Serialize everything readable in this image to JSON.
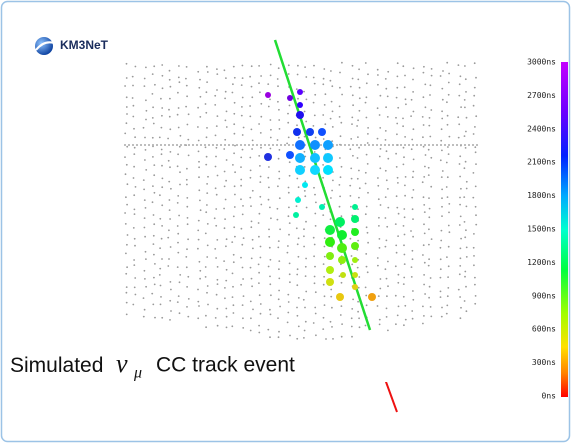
{
  "logo": {
    "text": "KM3NeT"
  },
  "caption": {
    "prefix": "Simulated",
    "symbol": "ν",
    "subscript": "μ",
    "suffix": "CC track event"
  },
  "colorbar": {
    "labels": [
      "3000ns",
      "2700ns",
      "2400ns",
      "2100ns",
      "1800ns",
      "1500ns",
      "1200ns",
      "900ns",
      "600ns",
      "300ns",
      "0ns"
    ]
  }
}
